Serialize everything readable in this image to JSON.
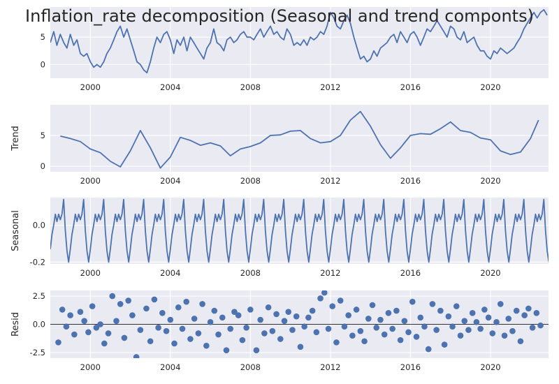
{
  "title": "Inflation_rate decomposition (Seasonal and trend componts)",
  "chart_data": [
    {
      "panel": "observed",
      "type": "line",
      "ylabel": "",
      "xlim": [
        1998.0,
        2022.9
      ],
      "ylim": [
        -2.5,
        10.5
      ],
      "x_ticks": [
        "2000",
        "2004",
        "2008",
        "2012",
        "2016",
        "2020"
      ],
      "y_ticks": [
        "0",
        "5"
      ],
      "color": "#4c72b0",
      "x": [
        1998.0,
        1998.17,
        1998.33,
        1998.5,
        1998.67,
        1998.83,
        1999.0,
        1999.17,
        1999.33,
        1999.5,
        1999.67,
        1999.83,
        2000.0,
        2000.17,
        2000.33,
        2000.5,
        2000.67,
        2000.83,
        2001.0,
        2001.17,
        2001.33,
        2001.5,
        2001.67,
        2001.83,
        2002.0,
        2002.17,
        2002.33,
        2002.5,
        2002.67,
        2002.83,
        2003.0,
        2003.17,
        2003.33,
        2003.5,
        2003.67,
        2003.83,
        2004.0,
        2004.17,
        2004.33,
        2004.5,
        2004.67,
        2004.83,
        2005.0,
        2005.17,
        2005.33,
        2005.5,
        2005.67,
        2005.83,
        2006.0,
        2006.17,
        2006.33,
        2006.5,
        2006.67,
        2006.83,
        2007.0,
        2007.17,
        2007.33,
        2007.5,
        2007.67,
        2007.83,
        2008.0,
        2008.17,
        2008.33,
        2008.5,
        2008.67,
        2008.83,
        2009.0,
        2009.17,
        2009.33,
        2009.5,
        2009.67,
        2009.83,
        2010.0,
        2010.17,
        2010.33,
        2010.5,
        2010.67,
        2010.83,
        2011.0,
        2011.17,
        2011.33,
        2011.5,
        2011.67,
        2011.83,
        2012.0,
        2012.17,
        2012.33,
        2012.5,
        2012.67,
        2012.83,
        2013.0,
        2013.17,
        2013.33,
        2013.5,
        2013.67,
        2013.83,
        2014.0,
        2014.17,
        2014.33,
        2014.5,
        2014.67,
        2014.83,
        2015.0,
        2015.17,
        2015.33,
        2015.5,
        2015.67,
        2015.83,
        2016.0,
        2016.17,
        2016.33,
        2016.5,
        2016.67,
        2016.83,
        2017.0,
        2017.17,
        2017.33,
        2017.5,
        2017.67,
        2017.83,
        2018.0,
        2018.17,
        2018.33,
        2018.5,
        2018.67,
        2018.83,
        2019.0,
        2019.17,
        2019.33,
        2019.5,
        2019.67,
        2019.83,
        2020.0,
        2020.17,
        2020.33,
        2020.5,
        2020.67,
        2020.83,
        2021.0,
        2021.17,
        2021.33,
        2021.5,
        2021.67,
        2021.83,
        2022.0,
        2022.17,
        2022.33,
        2022.5,
        2022.67,
        2022.83
      ],
      "values": [
        4.0,
        6.0,
        3.5,
        5.5,
        4.0,
        3.0,
        5.5,
        3.5,
        4.5,
        2.0,
        1.5,
        2.0,
        0.5,
        -0.5,
        0.0,
        -0.5,
        0.5,
        2.0,
        3.0,
        4.5,
        6.0,
        7.0,
        5.0,
        6.5,
        4.5,
        2.5,
        0.5,
        0.0,
        -1.0,
        -1.5,
        0.5,
        3.0,
        5.0,
        4.0,
        5.5,
        6.0,
        4.5,
        2.0,
        4.5,
        3.5,
        5.0,
        2.5,
        5.0,
        4.0,
        3.0,
        2.0,
        1.0,
        3.0,
        4.0,
        6.5,
        4.0,
        3.5,
        2.5,
        4.5,
        5.0,
        4.0,
        4.5,
        5.5,
        6.0,
        5.0,
        5.0,
        4.5,
        5.5,
        6.5,
        5.0,
        6.0,
        7.0,
        5.5,
        6.0,
        5.0,
        4.5,
        6.5,
        5.5,
        3.5,
        4.0,
        3.5,
        4.5,
        3.5,
        5.0,
        4.5,
        5.0,
        6.0,
        5.5,
        7.0,
        9.5,
        8.5,
        7.0,
        6.5,
        8.0,
        9.0,
        7.5,
        5.0,
        3.0,
        1.0,
        1.5,
        0.5,
        1.0,
        2.5,
        1.5,
        3.0,
        3.5,
        4.0,
        5.0,
        5.5,
        4.0,
        6.0,
        5.0,
        4.0,
        5.5,
        6.0,
        5.0,
        3.5,
        5.0,
        6.5,
        6.0,
        7.0,
        8.0,
        7.0,
        6.0,
        5.0,
        7.0,
        6.5,
        5.0,
        4.5,
        6.0,
        4.0,
        4.5,
        5.0,
        3.5,
        2.5,
        2.5,
        1.5,
        1.0,
        2.5,
        2.0,
        3.0,
        2.5,
        2.0,
        2.5,
        3.0,
        4.0,
        5.0,
        6.5,
        7.5,
        8.5,
        9.5,
        8.5,
        9.5,
        10.0,
        9.0
      ]
    },
    {
      "panel": "trend",
      "type": "line",
      "ylabel": "Trend",
      "xlim": [
        1998.0,
        2022.9
      ],
      "ylim": [
        -0.9,
        10.0
      ],
      "x_ticks": [
        "2000",
        "2004",
        "2008",
        "2012",
        "2016",
        "2020"
      ],
      "y_ticks": [
        "0",
        "5"
      ],
      "color": "#4c72b0",
      "x": [
        1998.5,
        1999.0,
        1999.5,
        2000.0,
        2000.5,
        2001.0,
        2001.5,
        2002.0,
        2002.5,
        2003.0,
        2003.5,
        2004.0,
        2004.5,
        2005.0,
        2005.5,
        2006.0,
        2006.5,
        2007.0,
        2007.5,
        2008.0,
        2008.5,
        2009.0,
        2009.5,
        2010.0,
        2010.5,
        2011.0,
        2011.5,
        2012.0,
        2012.5,
        2013.0,
        2013.5,
        2014.0,
        2014.5,
        2015.0,
        2015.5,
        2016.0,
        2016.5,
        2017.0,
        2017.5,
        2018.0,
        2018.5,
        2019.0,
        2019.5,
        2020.0,
        2020.5,
        2021.0,
        2021.5,
        2022.0,
        2022.4
      ],
      "values": [
        4.9,
        4.5,
        4.0,
        2.8,
        2.2,
        0.8,
        -0.1,
        2.5,
        5.8,
        3.0,
        -0.3,
        1.5,
        4.7,
        4.2,
        3.4,
        3.8,
        3.3,
        1.7,
        2.8,
        3.2,
        3.8,
        5.0,
        5.1,
        5.7,
        5.8,
        4.5,
        3.8,
        4.0,
        5.0,
        7.5,
        8.9,
        6.5,
        3.5,
        1.3,
        3.0,
        5.0,
        5.3,
        5.2,
        6.1,
        7.2,
        5.8,
        5.5,
        4.6,
        4.3,
        2.5,
        1.9,
        2.3,
        4.5,
        7.5
      ]
    },
    {
      "panel": "seasonal",
      "type": "line",
      "ylabel": "Seasonal",
      "xlim": [
        1998.0,
        2022.9
      ],
      "ylim": [
        -0.21,
        0.15
      ],
      "x_ticks": [
        "2000",
        "2004",
        "2008",
        "2012",
        "2016",
        "2020"
      ],
      "y_ticks": [
        "-0.2",
        "0.0"
      ],
      "color": "#4c72b0",
      "period_months": 12,
      "pattern": [
        -0.13,
        -0.05,
        0.0,
        0.06,
        0.02,
        0.06,
        0.03,
        0.06,
        0.14,
        -0.03,
        -0.14,
        -0.2
      ]
    },
    {
      "panel": "resid",
      "type": "scatter",
      "ylabel": "Resid",
      "xlim": [
        1998.0,
        2022.9
      ],
      "ylim": [
        -3.0,
        3.0
      ],
      "x_ticks": [
        "2000",
        "2004",
        "2008",
        "2012",
        "2016",
        "2020"
      ],
      "y_ticks": [
        "-2.5",
        "0.0",
        "2.5"
      ],
      "color": "#4c72b0",
      "x": [
        1998.4,
        1998.6,
        1998.8,
        1999.0,
        1999.2,
        1999.5,
        1999.7,
        1999.9,
        2000.1,
        2000.3,
        2000.5,
        2000.7,
        2000.9,
        2001.1,
        2001.3,
        2001.5,
        2001.7,
        2001.9,
        2002.1,
        2002.3,
        2002.5,
        2002.8,
        2003.0,
        2003.2,
        2003.4,
        2003.6,
        2003.8,
        2004.0,
        2004.2,
        2004.4,
        2004.6,
        2004.8,
        2005.0,
        2005.2,
        2005.4,
        2005.6,
        2005.8,
        2006.0,
        2006.2,
        2006.4,
        2006.6,
        2006.8,
        2007.0,
        2007.2,
        2007.4,
        2007.6,
        2007.8,
        2008.0,
        2008.3,
        2008.5,
        2008.7,
        2008.9,
        2009.1,
        2009.3,
        2009.5,
        2009.7,
        2009.9,
        2010.1,
        2010.3,
        2010.5,
        2010.7,
        2010.9,
        2011.1,
        2011.3,
        2011.5,
        2011.7,
        2011.9,
        2012.1,
        2012.3,
        2012.5,
        2012.7,
        2012.9,
        2013.1,
        2013.3,
        2013.5,
        2013.7,
        2013.9,
        2014.1,
        2014.3,
        2014.5,
        2014.7,
        2014.9,
        2015.1,
        2015.3,
        2015.5,
        2015.7,
        2015.9,
        2016.1,
        2016.3,
        2016.5,
        2016.7,
        2016.9,
        2017.1,
        2017.3,
        2017.5,
        2017.7,
        2017.9,
        2018.1,
        2018.3,
        2018.5,
        2018.7,
        2018.9,
        2019.1,
        2019.3,
        2019.5,
        2019.7,
        2019.9,
        2020.1,
        2020.3,
        2020.5,
        2020.7,
        2020.9,
        2021.1,
        2021.3,
        2021.5,
        2021.7,
        2021.9,
        2022.1,
        2022.3,
        2022.5
      ],
      "values": [
        -1.6,
        1.3,
        -0.2,
        0.8,
        -0.9,
        1.1,
        0.3,
        -0.7,
        1.6,
        -0.3,
        0.0,
        -1.7,
        -0.8,
        2.5,
        0.3,
        1.8,
        -1.2,
        2.1,
        0.8,
        -2.9,
        -0.5,
        1.4,
        -1.5,
        2.2,
        -0.3,
        1.0,
        -0.6,
        0.4,
        -1.7,
        1.5,
        -0.4,
        2.0,
        -1.3,
        0.5,
        -0.8,
        1.8,
        -1.9,
        0.2,
        1.2,
        -0.9,
        0.6,
        -2.3,
        -0.4,
        1.1,
        0.8,
        -1.4,
        -0.3,
        1.3,
        -2.3,
        0.4,
        -0.8,
        1.5,
        -0.6,
        0.9,
        -1.3,
        0.3,
        1.1,
        -0.5,
        0.7,
        -2.0,
        -0.2,
        0.6,
        1.2,
        -0.7,
        2.3,
        2.8,
        -0.4,
        1.6,
        -1.6,
        2.1,
        -0.2,
        0.8,
        -1.0,
        1.3,
        -0.6,
        -1.5,
        0.5,
        1.7,
        -0.3,
        0.4,
        -0.9,
        1.0,
        -0.4,
        1.2,
        -1.4,
        0.3,
        -0.7,
        2.0,
        -1.1,
        0.6,
        -0.2,
        -2.2,
        1.8,
        -0.5,
        1.2,
        -1.8,
        0.7,
        -0.2,
        1.6,
        -1.0,
        0.3,
        -0.5,
        1.0,
        0.2,
        -0.4,
        1.3,
        0.6,
        -0.8,
        0.2,
        1.8,
        -1.0,
        0.5,
        -0.6,
        1.2,
        -1.5,
        0.8,
        1.4,
        -0.3,
        1.0,
        -0.1
      ]
    }
  ]
}
